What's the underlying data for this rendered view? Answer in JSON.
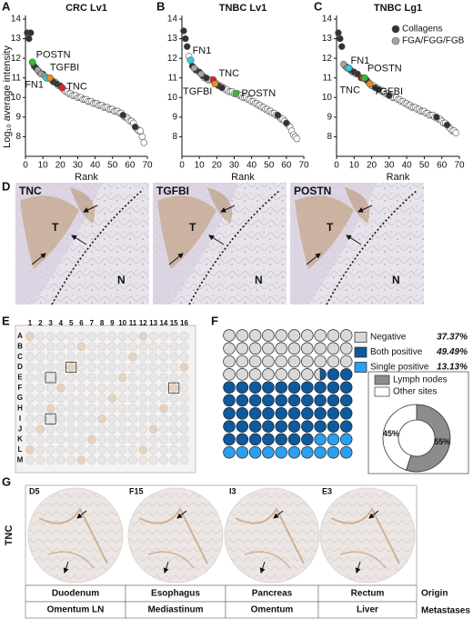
{
  "chart_data": [
    {
      "type": "scatter",
      "panel": "A",
      "title": "CRC Lv1",
      "x_label": "Rank",
      "y_label": "Log₁₀ average intensity",
      "xlim": [
        0,
        70
      ],
      "xticks": [
        0,
        10,
        20,
        30,
        40,
        50,
        60,
        70
      ],
      "ylim": [
        7,
        14
      ],
      "yticks": [
        8,
        9,
        10,
        11,
        12,
        13,
        14
      ],
      "series": [
        {
          "color": "#ffffff",
          "x": [
            15,
            17,
            19,
            22,
            23,
            24,
            25,
            26,
            27,
            28,
            29,
            30,
            31,
            32,
            33,
            34,
            35,
            36,
            37,
            38,
            39,
            40,
            41,
            42,
            43,
            44,
            45,
            46,
            47,
            48,
            49,
            50,
            51,
            52,
            53,
            54,
            55,
            57,
            58,
            59,
            60,
            61,
            62,
            64,
            65,
            66,
            67,
            68
          ],
          "values": [
            10.9,
            10.8,
            10.6,
            10.4,
            10.3,
            10.3,
            10.2,
            10.2,
            10.1,
            10.1,
            10.1,
            10.0,
            10.0,
            10.0,
            9.9,
            9.9,
            9.9,
            9.8,
            9.8,
            9.8,
            9.7,
            9.7,
            9.7,
            9.6,
            9.6,
            9.6,
            9.5,
            9.5,
            9.5,
            9.4,
            9.4,
            9.4,
            9.3,
            9.3,
            9.3,
            9.2,
            9.2,
            9.0,
            9.0,
            8.9,
            8.8,
            8.8,
            8.7,
            8.4,
            8.3,
            8.3,
            8.0,
            7.7
          ]
        },
        {
          "name": "Collagens",
          "color": "#333333",
          "x": [
            1,
            2,
            3,
            5,
            6,
            8,
            10,
            13,
            16,
            18,
            20,
            56,
            63
          ],
          "values": [
            13.3,
            13.0,
            13.3,
            11.6,
            11.5,
            11.3,
            11.2,
            11.0,
            10.8,
            10.7,
            10.6,
            9.1,
            8.5
          ]
        },
        {
          "name": "FGA/FGG/FGB",
          "color": "#a6a6a6",
          "x": [
            7,
            9,
            11
          ],
          "values": [
            11.4,
            11.2,
            11.1
          ]
        }
      ],
      "annotations": [
        {
          "text": "POSTN",
          "color": "#2cc12c",
          "x": 4,
          "y": 11.8
        },
        {
          "text": "FN1",
          "color": "#2fd0e2",
          "x": 12,
          "y": 11.0
        },
        {
          "text": "TGFBI",
          "color": "#ef8d1c",
          "x": 14,
          "y": 11.0
        },
        {
          "text": "TNC",
          "color": "#e3201b",
          "x": 21,
          "y": 10.5
        }
      ]
    },
    {
      "type": "scatter",
      "panel": "B",
      "title": "TNBC Lv1",
      "x_label": "Rank",
      "xlim": [
        0,
        70
      ],
      "xticks": [
        0,
        10,
        20,
        30,
        40,
        50,
        60,
        70
      ],
      "ylim": [
        7,
        14
      ],
      "yticks": [
        8,
        9,
        10,
        11,
        12,
        13,
        14
      ],
      "series": [
        {
          "color": "#ffffff",
          "x": [
            4,
            13,
            15,
            16,
            17,
            20,
            22,
            24,
            25,
            26,
            27,
            28,
            29,
            30,
            32,
            33,
            34,
            35,
            36,
            37,
            38,
            39,
            40,
            41,
            42,
            43,
            44,
            45,
            46,
            47,
            48,
            49,
            50,
            51,
            52,
            53,
            54,
            56,
            57,
            58,
            59,
            61,
            62,
            63,
            64,
            65,
            66
          ],
          "values": [
            12.1,
            11.0,
            10.9,
            10.9,
            10.9,
            10.7,
            10.6,
            10.5,
            10.4,
            10.4,
            10.3,
            10.3,
            10.3,
            10.2,
            10.2,
            10.1,
            10.1,
            10.0,
            10.0,
            10.0,
            9.9,
            9.9,
            9.8,
            9.8,
            9.7,
            9.7,
            9.6,
            9.6,
            9.5,
            9.5,
            9.4,
            9.4,
            9.3,
            9.3,
            9.2,
            9.2,
            9.1,
            9.0,
            8.9,
            8.9,
            8.8,
            8.6,
            8.5,
            8.3,
            8.1,
            8.0,
            7.9
          ]
        },
        {
          "name": "Collagens",
          "color": "#333333",
          "x": [
            1,
            2,
            3,
            6,
            8,
            10,
            12,
            14,
            21,
            23,
            55,
            60
          ],
          "values": [
            13.4,
            13.0,
            12.6,
            11.6,
            11.4,
            11.3,
            11.1,
            11.0,
            10.6,
            10.5,
            9.1,
            8.7
          ]
        },
        {
          "name": "FGA/FGG/FGB",
          "color": "#a6a6a6",
          "x": [
            7,
            11
          ],
          "values": [
            11.5,
            11.2
          ]
        }
      ],
      "annotations": [
        {
          "text": "FN1",
          "color": "#2fd0e2",
          "x": 5,
          "y": 11.9
        },
        {
          "text": "TNC",
          "color": "#e3201b",
          "x": 18,
          "y": 10.9
        },
        {
          "text": "TGFBI",
          "color": "#ef8d1c",
          "x": 19,
          "y": 10.7
        },
        {
          "text": "POSTN",
          "color": "#2cc12c",
          "x": 31,
          "y": 10.2
        }
      ]
    },
    {
      "type": "scatter",
      "panel": "C",
      "title": "TNBC Lg1",
      "x_label": "Rank",
      "legend": "upper right",
      "xlim": [
        0,
        70
      ],
      "xticks": [
        0,
        10,
        20,
        30,
        40,
        50,
        60,
        70
      ],
      "ylim": [
        7,
        14
      ],
      "yticks": [
        8,
        9,
        10,
        11,
        12,
        13,
        14
      ],
      "series": [
        {
          "color": "#ffffff",
          "x": [
            9,
            11,
            18,
            20,
            21,
            23,
            25,
            26,
            27,
            28,
            29,
            31,
            32,
            33,
            34,
            35,
            36,
            37,
            38,
            39,
            40,
            41,
            42,
            43,
            44,
            45,
            46,
            47,
            48,
            49,
            50,
            51,
            52,
            53,
            54,
            55,
            56,
            58,
            59,
            60,
            61,
            62,
            64,
            65,
            66,
            67,
            68
          ],
          "values": [
            11.3,
            11.2,
            10.8,
            10.6,
            10.6,
            10.5,
            10.4,
            10.3,
            10.3,
            10.2,
            10.2,
            10.1,
            10.0,
            10.0,
            10.0,
            9.9,
            9.9,
            9.8,
            9.8,
            9.7,
            9.7,
            9.6,
            9.6,
            9.5,
            9.5,
            9.5,
            9.4,
            9.4,
            9.3,
            9.3,
            9.3,
            9.2,
            9.2,
            9.1,
            9.1,
            9.1,
            9.0,
            8.9,
            8.9,
            8.8,
            8.7,
            8.7,
            8.5,
            8.4,
            8.3,
            8.3,
            8.2
          ]
        },
        {
          "name": "Collagens",
          "color": "#333333",
          "x": [
            1,
            2,
            3,
            5,
            8,
            10,
            12,
            14,
            17,
            22,
            24,
            30,
            57,
            63
          ],
          "values": [
            13.3,
            13.0,
            12.6,
            11.6,
            11.4,
            11.3,
            11.2,
            11.0,
            10.9,
            10.5,
            10.4,
            10.1,
            9.0,
            8.6
          ]
        },
        {
          "name": "FGA/FGG/FGB",
          "color": "#a6a6a6",
          "x": [
            4,
            6
          ],
          "values": [
            11.7,
            11.5
          ]
        }
      ],
      "annotations": [
        {
          "text": "FN1",
          "color": "#2fd0e2",
          "x": 7,
          "y": 11.5
        },
        {
          "text": "TNC",
          "color": "#e3201b",
          "x": 15,
          "y": 11.0
        },
        {
          "text": "POSTN",
          "color": "#2cc12c",
          "x": 16,
          "y": 11.0
        },
        {
          "text": "TGFBI",
          "color": "#ef8d1c",
          "x": 19,
          "y": 10.7
        }
      ]
    },
    {
      "type": "waffle",
      "panel": "F",
      "categories": [
        "Negative",
        "Both positive",
        "Single positive"
      ],
      "values": [
        37.37,
        49.49,
        13.13
      ],
      "value_labels": [
        "37.37%",
        "49.49%",
        "13.13%"
      ],
      "colors": [
        "#d9d9d9",
        "#0d5a9e",
        "#2b9ff0"
      ]
    },
    {
      "type": "pie",
      "hole": true,
      "categories": [
        "Lymph nodes",
        "Other sites"
      ],
      "values": [
        55,
        45
      ],
      "value_labels": [
        "55%",
        "45%"
      ],
      "colors": [
        "#8c8c8c",
        "#ffffff"
      ]
    }
  ],
  "ihc": {
    "panel": "D",
    "images": [
      {
        "label": "TNC"
      },
      {
        "label": "TGFBI"
      },
      {
        "label": "POSTN"
      }
    ],
    "tumor_label": "T",
    "normal_label": "N"
  },
  "tma": {
    "panel": "E",
    "columns": [
      "1",
      "2",
      "3",
      "4",
      "5",
      "6",
      "7",
      "8",
      "9",
      "10",
      "11",
      "12",
      "13",
      "14",
      "15",
      "16"
    ],
    "rows": [
      "A",
      "B",
      "C",
      "D",
      "E",
      "F",
      "G",
      "H",
      "I",
      "J",
      "K",
      "L",
      "M"
    ]
  },
  "cores": {
    "panel": "G",
    "stain": "TNC",
    "origin_label": "Origin",
    "metastasis_label": "Metastases",
    "items": [
      {
        "id": "D5",
        "origin": "Duodenum",
        "metastasis": "Omentum LN"
      },
      {
        "id": "F15",
        "origin": "Esophagus",
        "metastasis": "Mediastinum"
      },
      {
        "id": "I3",
        "origin": "Pancreas",
        "metastasis": "Omentum"
      },
      {
        "id": "E3",
        "origin": "Rectum",
        "metastasis": "Liver"
      }
    ]
  }
}
